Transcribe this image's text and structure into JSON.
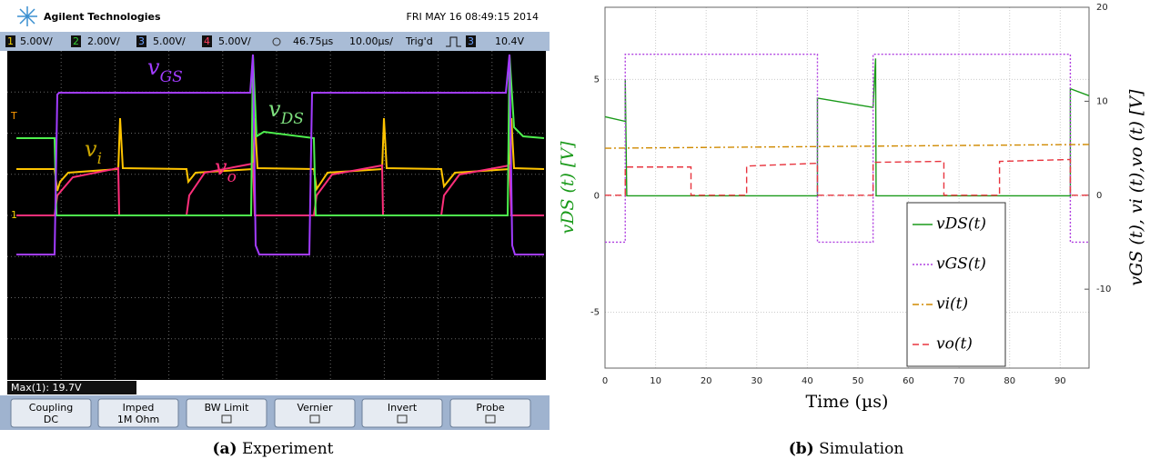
{
  "scope": {
    "brand": "Agilent Technologies",
    "timestamp": "FRI MAY 16 08:49:15 2014",
    "channels": [
      {
        "number": "1",
        "scale": "5.00V/"
      },
      {
        "number": "2",
        "scale": "2.00V/"
      },
      {
        "number": "3",
        "scale": "5.00V/"
      },
      {
        "number": "4",
        "scale": "5.00V/"
      }
    ],
    "delay": "46.75µs",
    "timebase": "10.00µs/",
    "trigger": "Trig'd",
    "trigger_channel": "3",
    "trigger_level": "10.4V",
    "trace_labels": [
      {
        "main": "v",
        "sub": "GS"
      },
      {
        "main": "v",
        "sub": "DS"
      },
      {
        "main": "v",
        "sub": "i"
      },
      {
        "main": "v",
        "sub": "o"
      }
    ],
    "measurement": "Max(1): 19.7V",
    "softkeys": [
      {
        "label": "Coupling",
        "value": "DC"
      },
      {
        "label": "Imped",
        "value": "1M Ohm"
      },
      {
        "label": "BW Limit"
      },
      {
        "label": "Vernier"
      },
      {
        "label": "Invert"
      },
      {
        "label": "Probe"
      }
    ]
  },
  "captions": [
    {
      "tag": "(a)",
      "text": "Experiment"
    },
    {
      "tag": "(b)",
      "text": "Simulation"
    }
  ],
  "chart_data": {
    "type": "line",
    "xlabel": "Time (µs)",
    "ylabel": "vDS (t) [V]",
    "y2label": "vGS (t), vi (t),vo (t) [V]",
    "xlim": [
      0,
      95.7
    ],
    "xticks": [
      0,
      10,
      20,
      30,
      40,
      50,
      60,
      70,
      80,
      90
    ],
    "ylim": [
      -7.4,
      8.1
    ],
    "yticks": [
      -5,
      0,
      5
    ],
    "y2lim": [
      -18.4,
      20
    ],
    "y2ticks": [
      -10,
      0,
      10,
      20
    ],
    "grid": true,
    "legend": "lower right",
    "series": [
      {
        "name": "vDS(t)",
        "color": "#1a9a1a",
        "style": "solid",
        "x": [
          0,
          4,
          4,
          4.3,
          42,
          42,
          53,
          53.5,
          53.6,
          92,
          92,
          95.7
        ],
        "values": [
          3.4,
          3.2,
          5,
          0,
          0,
          4.2,
          3.8,
          5.9,
          0,
          0,
          4.6,
          4.3
        ]
      },
      {
        "name": "vGS(t)",
        "color": "#b040e0",
        "style": "dotted",
        "axis": "y2",
        "x": [
          0,
          4,
          4,
          42,
          42,
          53,
          53,
          92,
          92,
          95.7
        ],
        "values": [
          -5,
          -5,
          15,
          15,
          -5,
          -5,
          15,
          15,
          -5,
          -5
        ]
      },
      {
        "name": "vi(t)",
        "color": "#d08a00",
        "style": "dashdot",
        "axis": "y2",
        "x": [
          0,
          95.7
        ],
        "values": [
          5.0,
          5.4
        ]
      },
      {
        "name": "vo(t)",
        "color": "#e8353f",
        "style": "dashed",
        "axis": "y2",
        "x": [
          0,
          4,
          4,
          17,
          17,
          28,
          28,
          42,
          42,
          53,
          53,
          67,
          67,
          78,
          78,
          92,
          92,
          95.7
        ],
        "values": [
          0,
          0,
          3.0,
          3.0,
          0,
          0,
          3.1,
          3.4,
          0,
          0,
          3.5,
          3.6,
          0,
          0,
          3.6,
          3.8,
          0,
          0
        ]
      }
    ]
  }
}
